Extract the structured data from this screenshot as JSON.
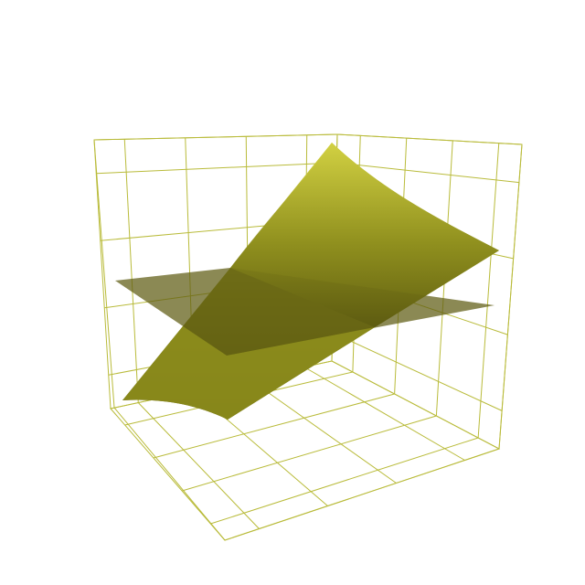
{
  "chart_data": {
    "type": "surface3d",
    "title": "",
    "xlabel": "",
    "ylabel": "",
    "zlabel": "",
    "grid": true,
    "axis_color": "#b9bb3a",
    "surfaces": [
      {
        "kind": "curved",
        "colors": [
          "#d2d142",
          "#8c8c1c",
          "#5c5a10"
        ],
        "corners": [
          [
            -1,
            1,
            1.0
          ],
          [
            1,
            1,
            0.4
          ],
          [
            1,
            -1,
            -0.4
          ],
          [
            -1,
            -1,
            -1.0
          ]
        ]
      },
      {
        "kind": "plane",
        "color": "#5e5c12",
        "opacity": 0.72,
        "corners": [
          [
            -1,
            1,
            0.0
          ],
          [
            1,
            1,
            0.0
          ],
          [
            1,
            -1,
            0.0
          ],
          [
            -1,
            -1,
            0.0
          ]
        ]
      }
    ]
  }
}
